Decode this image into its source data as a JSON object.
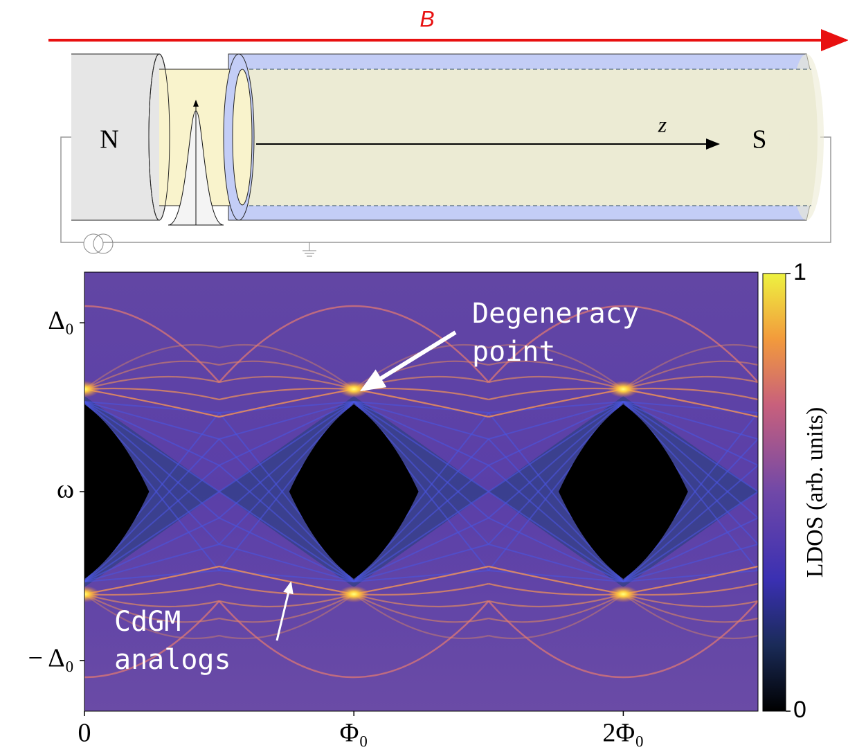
{
  "diagram": {
    "field_label": "B",
    "left_label": "N",
    "axis_label": "z",
    "right_label": "S"
  },
  "chart_data": {
    "type": "heatmap",
    "xlim": [
      0,
      2.5
    ],
    "xticks": [
      0,
      {
        "value": 1,
        "label": "Φ₀"
      },
      {
        "value": 2,
        "label": "2Φ₀"
      }
    ],
    "ylim": [
      -1.3,
      1.3
    ],
    "yticks": [
      {
        "value": -1,
        "label": "− Δ₀"
      },
      {
        "value": 0,
        "label": "ω"
      },
      {
        "value": 1,
        "label": "Δ₀"
      }
    ],
    "colorbar": {
      "label": "LDOS (arb. units)",
      "lim": [
        0,
        1
      ],
      "ticks": [
        0,
        1
      ]
    },
    "annotations": [
      {
        "text": [
          "Degeneracy",
          "point"
        ]
      },
      {
        "text": [
          "CdGM",
          "analogs"
        ]
      }
    ]
  }
}
